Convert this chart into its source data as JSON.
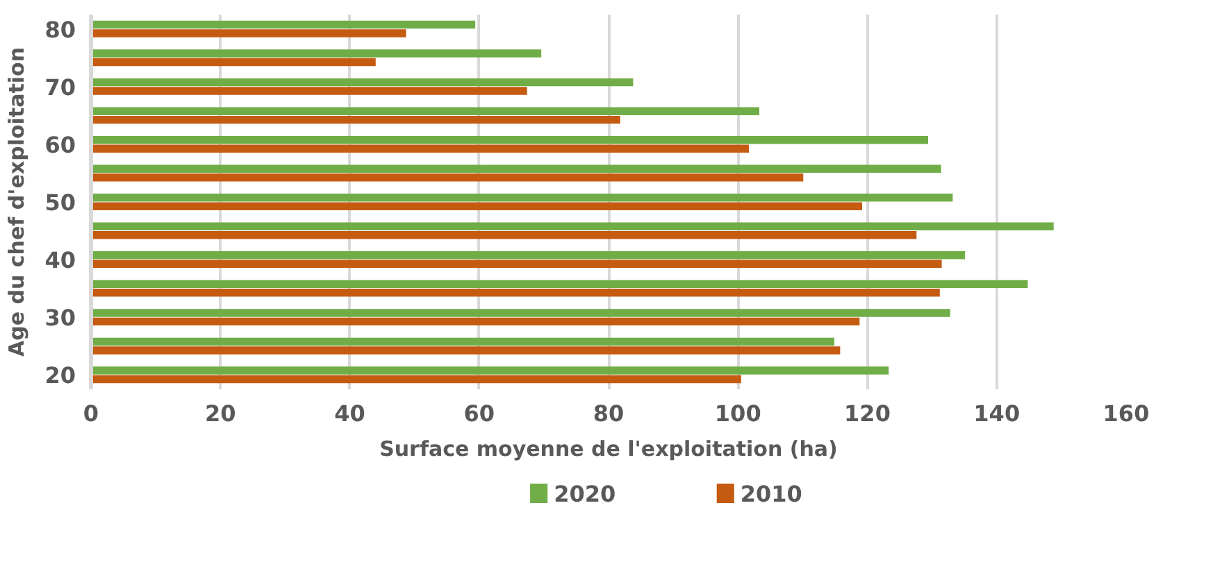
{
  "chart_data": {
    "type": "bar",
    "orientation": "horizontal",
    "xlabel": "Surface moyenne de l'exploitation (ha)",
    "ylabel": "Age du chef d'exploitation",
    "categories": [
      "80",
      null,
      "70",
      null,
      "60",
      null,
      "50",
      null,
      "40",
      null,
      "30",
      null,
      "20"
    ],
    "series": [
      {
        "name": "2020",
        "color": "#70ad47",
        "values": [
          59.4,
          69.6,
          83.8,
          103.3,
          129.4,
          131.4,
          133.2,
          148.8,
          135.1,
          144.8,
          132.8,
          114.9,
          123.3
        ]
      },
      {
        "name": "2010",
        "color": "#c55a11",
        "values": [
          48.7,
          44.0,
          67.4,
          81.8,
          101.7,
          110.1,
          119.2,
          127.6,
          131.5,
          131.2,
          118.8,
          115.8,
          100.5
        ]
      }
    ],
    "xlim": [
      0,
      160
    ],
    "xticks": [
      0,
      20,
      40,
      60,
      80,
      100,
      120,
      140,
      160
    ],
    "grid": "x",
    "legend": "bottom"
  }
}
